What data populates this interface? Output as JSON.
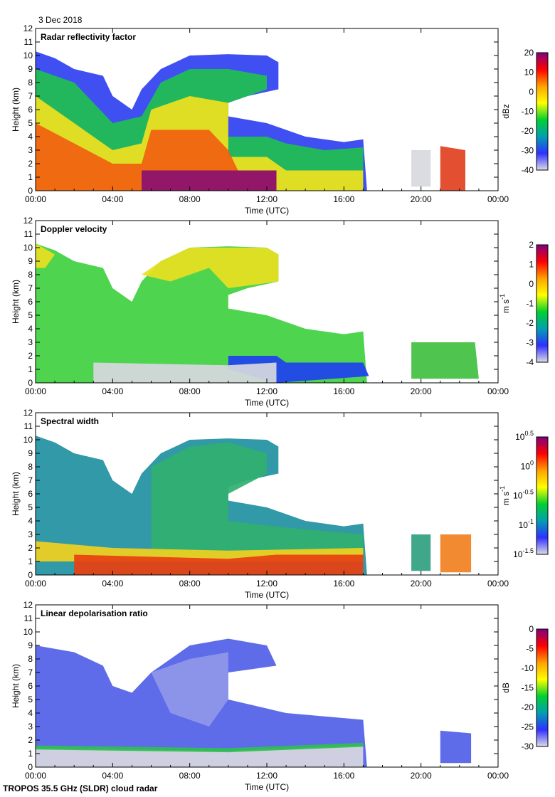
{
  "date": "3 Dec 2018",
  "footer": "TROPOS 35.5 GHz (SLDR) cloud radar",
  "cloud_envelope": [
    [
      0,
      10.3
    ],
    [
      1,
      9.8
    ],
    [
      2,
      9
    ],
    [
      3.5,
      8.5
    ],
    [
      4,
      7
    ],
    [
      5,
      6
    ],
    [
      5.5,
      7.5
    ],
    [
      6.5,
      9
    ],
    [
      8,
      10
    ],
    [
      10,
      10.1
    ],
    [
      12,
      10
    ],
    [
      12.6,
      9.5
    ],
    [
      12.6,
      7.5
    ],
    [
      11,
      7
    ],
    [
      10,
      6.5
    ],
    [
      10,
      5.5
    ],
    [
      12,
      5
    ],
    [
      13,
      4.5
    ],
    [
      14,
      4
    ],
    [
      16,
      3.6
    ],
    [
      17,
      3.8
    ],
    [
      17.2,
      0
    ],
    [
      0,
      0
    ]
  ],
  "chart_data": [
    {
      "type": "heatmap",
      "title": "Radar reflectivity factor",
      "xlabel": "Time (UTC)",
      "ylabel": "Height (km)",
      "xlim": [
        0,
        24
      ],
      "ylim": [
        0,
        12
      ],
      "xticks": [
        "00:00",
        "04:00",
        "08:00",
        "12:00",
        "16:00",
        "20:00",
        "00:00"
      ],
      "yticks": [
        "0",
        "1",
        "2",
        "3",
        "4",
        "5",
        "6",
        "7",
        "8",
        "9",
        "10",
        "11",
        "12"
      ],
      "colorbar": {
        "label": "dBz",
        "range": [
          -40,
          20
        ],
        "ticks": [
          "20",
          "10",
          "0",
          "-10",
          "-20",
          "-30",
          "-40"
        ],
        "colors": [
          "#dcdce8",
          "#3030ff",
          "#00a0b0",
          "#00d030",
          "#ffff00",
          "#ffa000",
          "#ff0000",
          "#800080"
        ]
      },
      "regions": [
        {
          "color": "#3040f0",
          "points": "envelope"
        },
        {
          "color": "#20c050",
          "points": [
            [
              0,
              9
            ],
            [
              2,
              8
            ],
            [
              3,
              6.5
            ],
            [
              4,
              5
            ],
            [
              5.5,
              5.5
            ],
            [
              6.5,
              8
            ],
            [
              8,
              9
            ],
            [
              10,
              9
            ],
            [
              12,
              8.5
            ],
            [
              12,
              7.5
            ],
            [
              10,
              6.5
            ],
            [
              10,
              4
            ],
            [
              12,
              4
            ],
            [
              13,
              3.5
            ],
            [
              15,
              3
            ],
            [
              17,
              3.2
            ],
            [
              17,
              0
            ],
            [
              0,
              0
            ]
          ]
        },
        {
          "color": "#f0e020",
          "points": [
            [
              0,
              7
            ],
            [
              2,
              5
            ],
            [
              4,
              3
            ],
            [
              5.5,
              3.5
            ],
            [
              6,
              6
            ],
            [
              8,
              7
            ],
            [
              10,
              6.5
            ],
            [
              10,
              2.5
            ],
            [
              12,
              2.5
            ],
            [
              13,
              1.5
            ],
            [
              17,
              1.5
            ],
            [
              17,
              0
            ],
            [
              0,
              0
            ]
          ]
        },
        {
          "color": "#f06010",
          "points": [
            [
              0,
              5
            ],
            [
              2,
              3.5
            ],
            [
              4,
              2
            ],
            [
              5.5,
              2
            ],
            [
              6,
              4.5
            ],
            [
              9,
              4.5
            ],
            [
              10,
              3
            ],
            [
              10.5,
              1.5
            ],
            [
              12.5,
              1.5
            ],
            [
              12.5,
              0
            ],
            [
              0,
              0
            ]
          ]
        },
        {
          "color": "#8a1070",
          "points": [
            [
              5.5,
              1.5
            ],
            [
              12.5,
              1.5
            ],
            [
              12.5,
              0
            ],
            [
              5.5,
              0
            ]
          ]
        },
        {
          "color": "#d8d8e0",
          "points": [
            [
              19.5,
              3
            ],
            [
              20.5,
              3
            ],
            [
              20.5,
              0.3
            ],
            [
              19.5,
              0.3
            ]
          ]
        },
        {
          "color": "#e04020",
          "points": [
            [
              21,
              3.3
            ],
            [
              22.3,
              3
            ],
            [
              22.3,
              0
            ],
            [
              21,
              0
            ]
          ]
        }
      ]
    },
    {
      "type": "heatmap",
      "title": "Doppler velocity",
      "xlabel": "Time (UTC)",
      "ylabel": "Height (km)",
      "xlim": [
        0,
        24
      ],
      "ylim": [
        0,
        12
      ],
      "xticks": [
        "00:00",
        "04:00",
        "08:00",
        "12:00",
        "16:00",
        "20:00",
        "00:00"
      ],
      "yticks": [
        "0",
        "1",
        "2",
        "3",
        "4",
        "5",
        "6",
        "7",
        "8",
        "9",
        "10",
        "11",
        "12"
      ],
      "colorbar": {
        "label": "m s-1",
        "range": [
          -4,
          2
        ],
        "ticks": [
          "2",
          "1",
          "0",
          "-1",
          "-2",
          "-3",
          "-4"
        ],
        "colors": [
          "#dcdce8",
          "#3030ff",
          "#00a0b0",
          "#00d030",
          "#ffff00",
          "#ffa000",
          "#ff0000",
          "#800080"
        ]
      },
      "regions": [
        {
          "color": "#40d040",
          "points": "envelope"
        },
        {
          "color": "#e8e020",
          "points": [
            [
              5.5,
              8
            ],
            [
              6.5,
              9
            ],
            [
              8,
              10
            ],
            [
              12,
              10
            ],
            [
              12.6,
              9.5
            ],
            [
              12.6,
              7.5
            ],
            [
              10,
              7
            ],
            [
              9,
              8.5
            ],
            [
              7,
              7.5
            ]
          ]
        },
        {
          "color": "#e8e020",
          "points": [
            [
              0,
              10.3
            ],
            [
              1,
              9.5
            ],
            [
              0.5,
              8.5
            ],
            [
              0,
              8.5
            ]
          ]
        },
        {
          "color": "#2040f0",
          "points": [
            [
              10,
              2
            ],
            [
              12.5,
              2
            ],
            [
              13,
              1.5
            ],
            [
              17,
              1.5
            ],
            [
              17.3,
              0.5
            ],
            [
              12.5,
              0
            ],
            [
              10,
              1
            ]
          ]
        },
        {
          "color": "#d8d8e0",
          "points": [
            [
              3,
              1.5
            ],
            [
              10,
              1.3
            ],
            [
              12.5,
              1.5
            ],
            [
              12.5,
              0
            ],
            [
              3,
              0
            ]
          ]
        },
        {
          "color": "#40c040",
          "points": [
            [
              19.5,
              3
            ],
            [
              22.8,
              3
            ],
            [
              23,
              0.3
            ],
            [
              19.5,
              0.3
            ]
          ]
        }
      ]
    },
    {
      "type": "heatmap",
      "title": "Spectral width",
      "xlabel": "Time (UTC)",
      "ylabel": "Height (km)",
      "xlim": [
        0,
        24
      ],
      "ylim": [
        0,
        12
      ],
      "xticks": [
        "00:00",
        "04:00",
        "08:00",
        "12:00",
        "16:00",
        "20:00",
        "00:00"
      ],
      "yticks": [
        "0",
        "1",
        "2",
        "3",
        "4",
        "5",
        "6",
        "7",
        "8",
        "9",
        "10",
        "11",
        "12"
      ],
      "colorbar": {
        "label": "m s-1",
        "range": [
          -1.5,
          0.5
        ],
        "ticks": [
          "10^0.5",
          "10^0",
          "10^-0.5",
          "10^-1",
          "10^-1.5"
        ],
        "colors": [
          "#dcdce8",
          "#3030ff",
          "#00a0b0",
          "#00d030",
          "#ffff00",
          "#ffa000",
          "#ff0000",
          "#800080"
        ]
      },
      "regions": [
        {
          "color": "#2090a0",
          "points": "envelope"
        },
        {
          "color": "#30b070",
          "points": [
            [
              6,
              8
            ],
            [
              8,
              9.5
            ],
            [
              10,
              9.8
            ],
            [
              12,
              9
            ],
            [
              12,
              7.5
            ],
            [
              10,
              6
            ],
            [
              10,
              4
            ],
            [
              13,
              3.5
            ],
            [
              17,
              3
            ],
            [
              17,
              1.5
            ],
            [
              6,
              1.5
            ]
          ]
        },
        {
          "color": "#f0d020",
          "points": [
            [
              0,
              2.5
            ],
            [
              4,
              2
            ],
            [
              10,
              1.8
            ],
            [
              17,
              2
            ],
            [
              17,
              1
            ],
            [
              0,
              1
            ]
          ]
        },
        {
          "color": "#e84010",
          "points": [
            [
              2,
              1.5
            ],
            [
              10,
              1.2
            ],
            [
              12.5,
              1.5
            ],
            [
              17,
              1.5
            ],
            [
              17,
              0
            ],
            [
              2,
              0
            ]
          ]
        },
        {
          "color": "#30a080",
          "points": [
            [
              19.5,
              3
            ],
            [
              20.5,
              3
            ],
            [
              20.5,
              0.3
            ],
            [
              19.5,
              0.3
            ]
          ]
        },
        {
          "color": "#f08020",
          "points": [
            [
              21,
              3
            ],
            [
              22.6,
              3
            ],
            [
              22.6,
              0.2
            ],
            [
              21,
              0.2
            ]
          ]
        }
      ]
    },
    {
      "type": "heatmap",
      "title": "Linear depolarisation ratio",
      "xlabel": "Time (UTC)",
      "ylabel": "Height (km)",
      "xlim": [
        0,
        24
      ],
      "ylim": [
        0,
        12
      ],
      "xticks": [
        "00:00",
        "04:00",
        "08:00",
        "12:00",
        "16:00",
        "20:00",
        "00:00"
      ],
      "yticks": [
        "0",
        "1",
        "2",
        "3",
        "4",
        "5",
        "6",
        "7",
        "8",
        "9",
        "10",
        "11",
        "12"
      ],
      "colorbar": {
        "label": "dB",
        "range": [
          -30,
          0
        ],
        "ticks": [
          "0",
          "-5",
          "-10",
          "-15",
          "-20",
          "-25",
          "-30"
        ],
        "colors": [
          "#dcdce8",
          "#3030ff",
          "#00a0b0",
          "#00d030",
          "#ffff00",
          "#ffa000",
          "#ff0000",
          "#800080"
        ]
      },
      "regions": [
        {
          "color": "#5060e8",
          "points": [
            [
              0,
              9
            ],
            [
              2,
              8.5
            ],
            [
              3.5,
              7.5
            ],
            [
              4,
              6
            ],
            [
              5,
              5.5
            ],
            [
              6,
              7
            ],
            [
              8,
              9
            ],
            [
              10,
              9.5
            ],
            [
              12,
              9
            ],
            [
              12.5,
              7.5
            ],
            [
              10,
              7
            ],
            [
              10,
              5
            ],
            [
              13,
              4
            ],
            [
              17,
              3.5
            ],
            [
              17.2,
              0
            ],
            [
              0,
              0
            ]
          ]
        },
        {
          "color": "#9098e8",
          "points": [
            [
              6,
              7
            ],
            [
              8,
              8
            ],
            [
              10,
              8.5
            ],
            [
              10,
              5
            ],
            [
              9,
              3
            ],
            [
              7,
              4
            ]
          ]
        },
        {
          "color": "#d8d8e0",
          "points": [
            [
              0,
              1.4
            ],
            [
              10,
              1.2
            ],
            [
              17,
              1.6
            ],
            [
              17,
              0
            ],
            [
              0,
              0
            ]
          ]
        },
        {
          "color": "#30c050",
          "points": [
            [
              0,
              1.6
            ],
            [
              10,
              1.4
            ],
            [
              17,
              1.8
            ],
            [
              17,
              1.5
            ],
            [
              10,
              1.1
            ],
            [
              0,
              1.3
            ]
          ]
        },
        {
          "color": "#5060e8",
          "points": [
            [
              21,
              2.7
            ],
            [
              22.6,
              2.5
            ],
            [
              22.6,
              0.3
            ],
            [
              21,
              0.3
            ]
          ]
        }
      ]
    }
  ]
}
